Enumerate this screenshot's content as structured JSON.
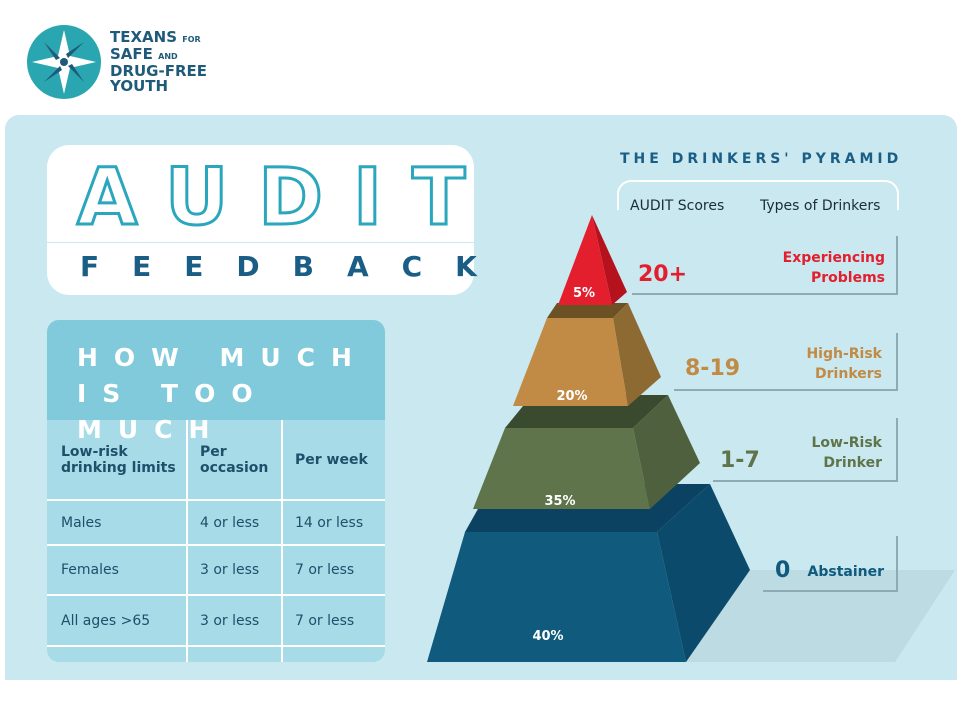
{
  "logo": {
    "line1": "TEXANS",
    "line1_small": "FOR",
    "line2": "SAFE",
    "line2_small": "AND",
    "line3": "DRUG-FREE",
    "line4": "YOUTH"
  },
  "title": {
    "main": "AUDIT",
    "sub": "FEEDBACK"
  },
  "limits": {
    "heading": "HOW MUCH IS TOO MUCH",
    "columns": [
      "Low-risk drinking limits",
      "Per occasion",
      "Per week"
    ],
    "rows": [
      [
        "Males",
        "4 or less",
        "14 or less"
      ],
      [
        "Females",
        "3 or less",
        "7 or less"
      ],
      [
        "All ages >65",
        "3 or less",
        "7 or less"
      ]
    ]
  },
  "pyramid": {
    "title": "THE DRINKERS' PYRAMID",
    "col_scores": "AUDIT Scores",
    "col_types": "Types of Drinkers",
    "levels": [
      {
        "percent": "5%",
        "score": "20+",
        "type": "Experiencing Problems",
        "color": "#e31e2d"
      },
      {
        "percent": "20%",
        "score": "8-19",
        "type": "High-Risk Drinkers",
        "color": "#c18a45"
      },
      {
        "percent": "35%",
        "score": "1-7",
        "type": "Low-Risk Drinker",
        "color": "#5f744a"
      },
      {
        "percent": "40%",
        "score": "0",
        "type": "Abstainer",
        "color": "#0f5a7d"
      }
    ]
  }
}
